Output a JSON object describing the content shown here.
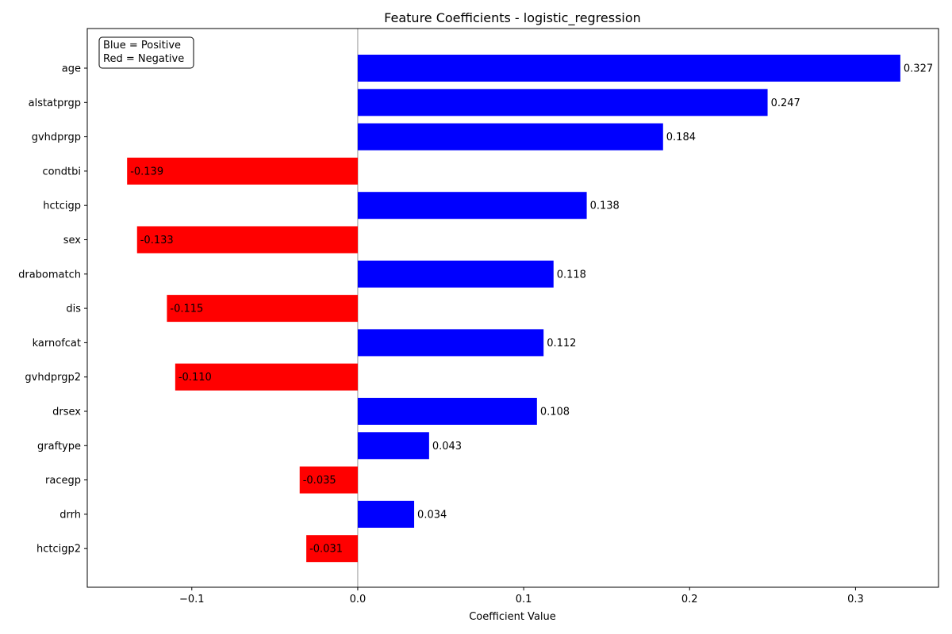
{
  "chart_data": {
    "type": "bar",
    "orientation": "horizontal",
    "title": "Feature Coefficients - logistic_regression",
    "xlabel": "Coefficient Value",
    "ylabel": "",
    "xlim": [
      -0.163,
      0.35
    ],
    "xticks": [
      -0.1,
      0.0,
      0.1,
      0.2,
      0.3
    ],
    "xtick_labels": [
      "−0.1",
      "0.0",
      "0.1",
      "0.2",
      "0.3"
    ],
    "categories": [
      "age",
      "alstatprgp",
      "gvhdprgp",
      "condtbi",
      "hctcigp",
      "sex",
      "drabomatch",
      "dis",
      "karnofcat",
      "gvhdprgp2",
      "drsex",
      "graftype",
      "racegp",
      "drrh",
      "hctcigp2"
    ],
    "values": [
      0.327,
      0.247,
      0.184,
      -0.139,
      0.138,
      -0.133,
      0.118,
      -0.115,
      0.112,
      -0.11,
      0.108,
      0.043,
      -0.035,
      0.034,
      -0.031
    ],
    "value_labels": [
      "0.327",
      "0.247",
      "0.184",
      "-0.139",
      "0.138",
      "-0.133",
      "0.118",
      "-0.115",
      "0.112",
      "-0.110",
      "0.108",
      "0.043",
      "-0.035",
      "0.034",
      "-0.031"
    ],
    "colors": {
      "positive": "#0000ff",
      "negative": "#ff0000",
      "zero_line": "#999999"
    },
    "legend": {
      "lines": [
        "Blue = Positive",
        "Red = Negative"
      ],
      "placement": "top-left"
    },
    "grid": false
  }
}
